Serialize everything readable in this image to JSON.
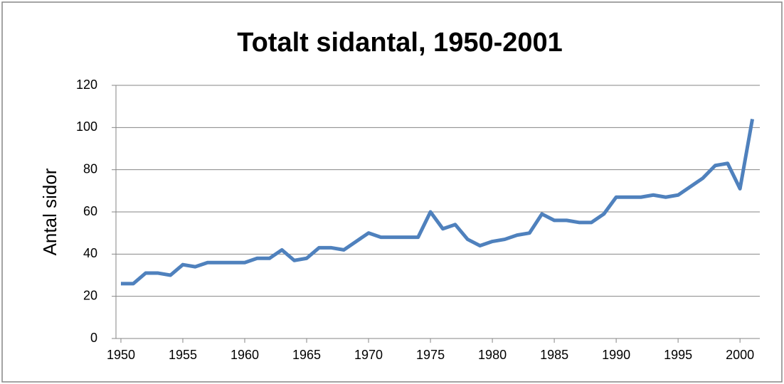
{
  "chart_data": {
    "type": "line",
    "title": "Totalt sidantal, 1950-2001",
    "y_label": "Antal sidor",
    "x": [
      1950,
      1951,
      1952,
      1953,
      1954,
      1955,
      1956,
      1957,
      1958,
      1959,
      1960,
      1961,
      1962,
      1963,
      1964,
      1965,
      1966,
      1967,
      1968,
      1969,
      1970,
      1971,
      1972,
      1973,
      1974,
      1975,
      1976,
      1977,
      1978,
      1979,
      1980,
      1981,
      1982,
      1983,
      1984,
      1985,
      1986,
      1987,
      1988,
      1989,
      1990,
      1991,
      1992,
      1993,
      1994,
      1995,
      1996,
      1997,
      1998,
      1999,
      2000,
      2001
    ],
    "series": [
      {
        "name": "Totalt sidantal",
        "color": "#4f81bd",
        "values": [
          26,
          26,
          31,
          31,
          30,
          35,
          34,
          36,
          36,
          36,
          36,
          38,
          38,
          42,
          37,
          38,
          43,
          43,
          42,
          46,
          50,
          48,
          48,
          48,
          48,
          60,
          52,
          54,
          47,
          44,
          46,
          47,
          49,
          50,
          59,
          56,
          56,
          55,
          55,
          59,
          67,
          67,
          67,
          68,
          67,
          68,
          72,
          76,
          82,
          83,
          71,
          104
        ]
      }
    ],
    "xlim": [
      1949.6,
      2001.6
    ],
    "xticks": [
      1950,
      1955,
      1960,
      1965,
      1970,
      1975,
      1980,
      1985,
      1990,
      1995,
      2000
    ],
    "ylim": [
      0,
      120
    ],
    "yticks": [
      0,
      20,
      40,
      60,
      80,
      100,
      120
    ],
    "grid": true
  }
}
